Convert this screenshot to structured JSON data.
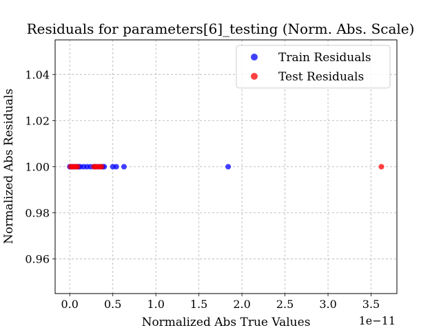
{
  "chart_data": {
    "type": "scatter",
    "title": "Residuals for parameters[6]_testing (Norm. Abs. Scale)",
    "xlabel": "Normalized Abs True Values",
    "ylabel": "Normalized Abs Residuals",
    "x_offset_text": "1e−11",
    "xlim": [
      -0.17,
      3.8
    ],
    "ylim": [
      0.945,
      1.055
    ],
    "x_ticks": [
      0.0,
      0.5,
      1.0,
      1.5,
      2.0,
      2.5,
      3.0,
      3.5
    ],
    "x_tick_labels": [
      "0.0",
      "0.5",
      "1.0",
      "1.5",
      "2.0",
      "2.5",
      "3.0",
      "3.5"
    ],
    "y_ticks": [
      0.96,
      0.98,
      1.0,
      1.02,
      1.04
    ],
    "y_tick_labels": [
      "0.96",
      "0.98",
      "1.00",
      "1.02",
      "1.04"
    ],
    "grid": true,
    "legend_position": "top-right",
    "series": [
      {
        "name": "Train Residuals",
        "color": "#0000ff",
        "x": [
          0.0,
          0.02,
          0.04,
          0.06,
          0.08,
          0.1,
          0.12,
          0.16,
          0.2,
          0.24,
          0.28,
          0.3,
          0.34,
          0.38,
          0.4,
          0.5,
          0.54,
          0.63,
          1.84
        ],
        "y": [
          1,
          1,
          1,
          1,
          1,
          1,
          1,
          1,
          1,
          1,
          1,
          1,
          1,
          1,
          1,
          1,
          1,
          1,
          1
        ]
      },
      {
        "name": "Test Residuals",
        "color": "#ff0000",
        "x": [
          0.01,
          0.03,
          0.05,
          0.07,
          0.09,
          0.28,
          0.3,
          0.32,
          0.35,
          0.37,
          3.62
        ],
        "y": [
          1,
          1,
          1,
          1,
          1,
          1,
          1,
          1,
          1,
          1,
          1
        ]
      }
    ]
  }
}
